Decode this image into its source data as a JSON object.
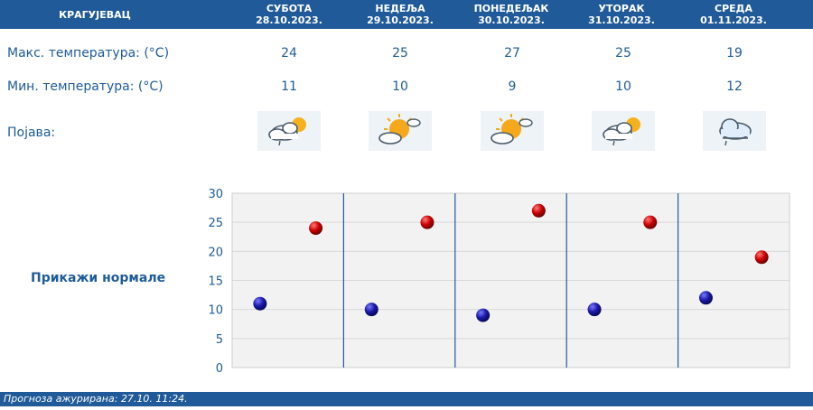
{
  "header": {
    "city": "КРАГУЈЕВАЦ",
    "days": [
      {
        "name": "СУБОТА",
        "date": "28.10.2023."
      },
      {
        "name": "НЕДЕЉА",
        "date": "29.10.2023."
      },
      {
        "name": "ПОНЕДЕЉАК",
        "date": "30.10.2023."
      },
      {
        "name": "УТОРАК",
        "date": "31.10.2023."
      },
      {
        "name": "СРЕДА",
        "date": "01.11.2023."
      }
    ]
  },
  "rows": {
    "max_label": "Макс. температура: (°C)",
    "min_label": "Мин. температура: (°C)",
    "phenomenon_label": "Појава:",
    "max_values": [
      "24",
      "25",
      "27",
      "25",
      "19"
    ],
    "min_values": [
      "11",
      "10",
      "9",
      "10",
      "12"
    ],
    "icons": [
      "partly-cloudy-rain-icon",
      "sun-cloud-icon",
      "sun-cloud-icon",
      "partly-cloudy-rain-icon",
      "cloud-rain-icon"
    ]
  },
  "show_normals": "Прикажи нормале",
  "footer": {
    "label": "Прогноза ажурирана:",
    "value": "27.10. 11:24."
  },
  "colors": {
    "header_bg": "#205a98",
    "max_marker": "#cc0000",
    "min_marker": "#1a1aa8"
  },
  "chart_data": {
    "type": "scatter",
    "categories": [
      "28.10.2023.",
      "29.10.2023.",
      "30.10.2023.",
      "31.10.2023.",
      "01.11.2023."
    ],
    "series": [
      {
        "values": [
          24,
          25,
          27,
          25,
          19
        ]
      },
      {
        "values": [
          11,
          10,
          9,
          10,
          12
        ]
      }
    ],
    "yticks": [
      "0",
      "5",
      "10",
      "15",
      "20",
      "25",
      "30"
    ],
    "ylim": [
      0,
      30
    ],
    "grid": true
  }
}
